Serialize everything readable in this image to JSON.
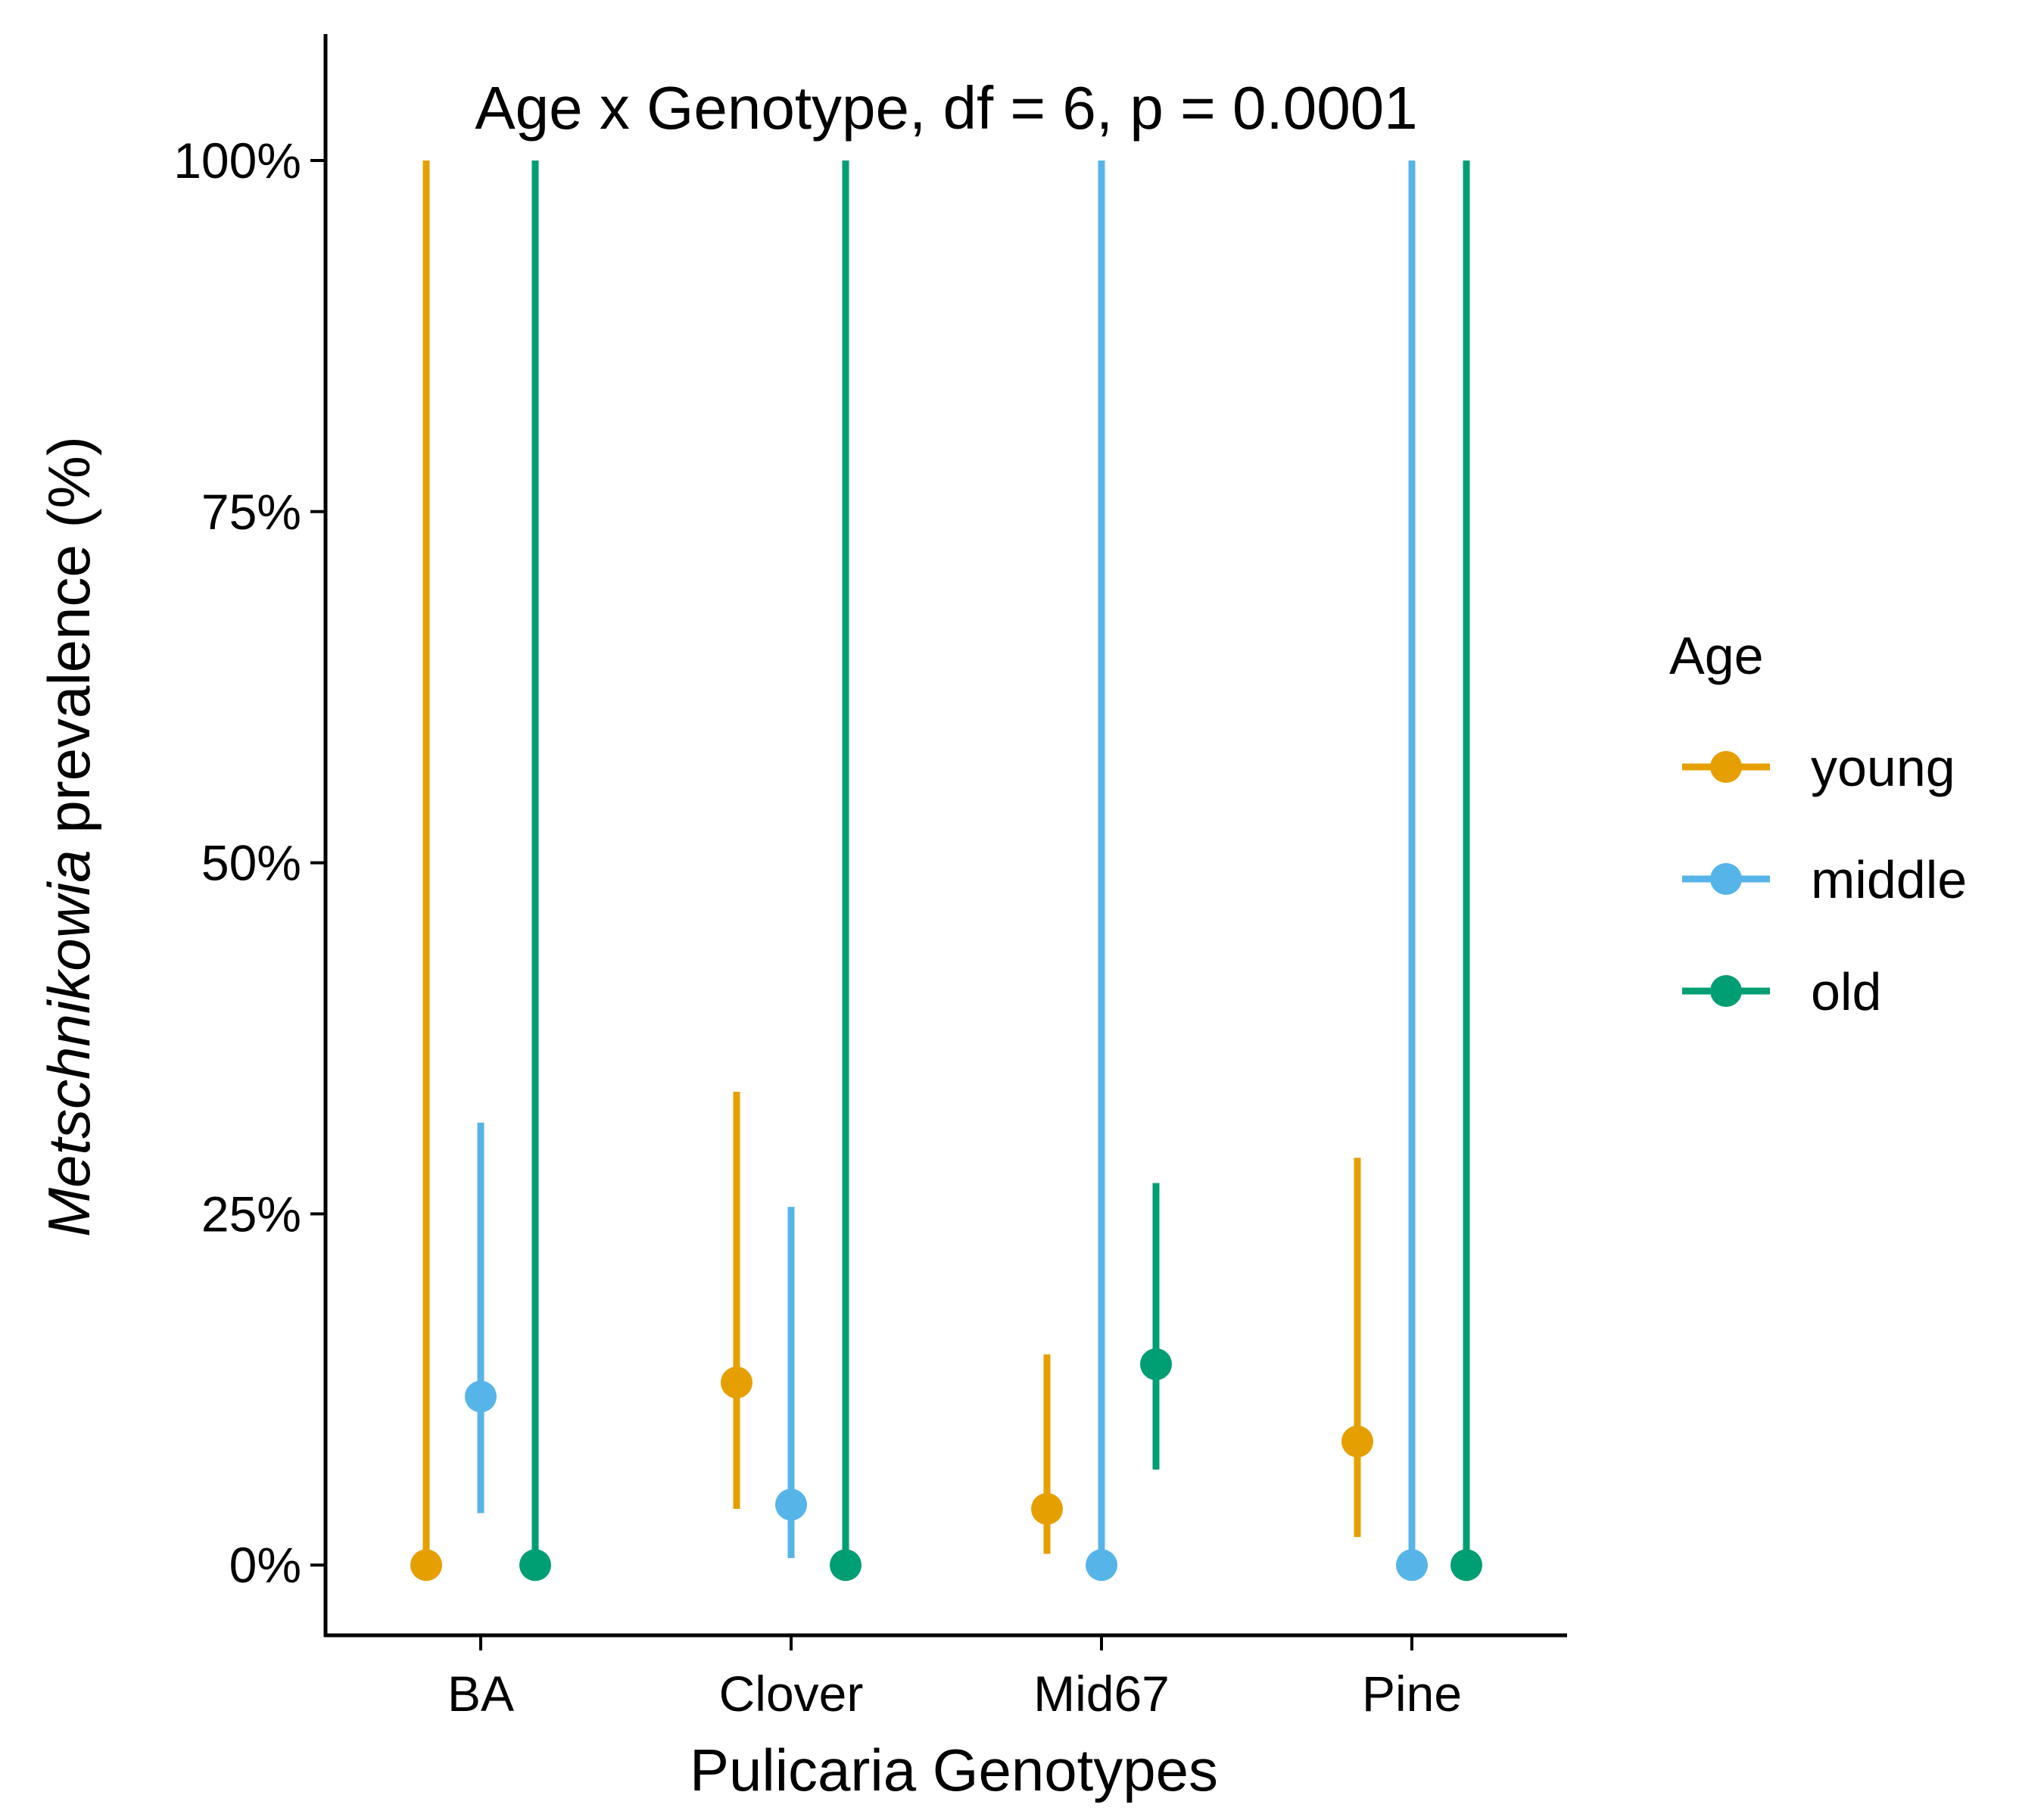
{
  "chart_data": {
    "type": "scatter",
    "categories": [
      "BA",
      "Clover",
      "Mid67",
      "Pine"
    ],
    "xlabel": "Pulicaria Genotypes",
    "ylabel_italic": "Metschnikowia",
    "ylabel_rest": " prevalence (%)",
    "annotation": "Age x Genotype, df = 6, p = 0.0001",
    "ylim": [
      -0.05,
      1.09
    ],
    "y_ticks": [
      0,
      0.25,
      0.5,
      0.75,
      1.0
    ],
    "y_tick_labels": [
      "0%",
      "25%",
      "50%",
      "75%",
      "100%"
    ],
    "grid": false,
    "legend": {
      "title": "Age",
      "position": "right",
      "entries": [
        "young",
        "middle",
        "old"
      ]
    },
    "series": [
      {
        "name": "young",
        "color": "#E69F00",
        "values": [
          0.0,
          0.13,
          0.04,
          0.088
        ],
        "lower": [
          0.0,
          0.04,
          0.008,
          0.02
        ],
        "upper": [
          1.0,
          0.337,
          0.15,
          0.29
        ]
      },
      {
        "name": "middle",
        "color": "#56B4E9",
        "values": [
          0.12,
          0.043,
          0.0,
          0.0
        ],
        "lower": [
          0.037,
          0.005,
          0.0,
          0.0
        ],
        "upper": [
          0.315,
          0.255,
          1.0,
          1.0
        ]
      },
      {
        "name": "old",
        "color": "#009E73",
        "values": [
          0.0,
          0.0,
          0.143,
          0.0
        ],
        "lower": [
          0.0,
          0.0,
          0.068,
          0.0
        ],
        "upper": [
          1.0,
          1.0,
          0.272,
          1.0
        ]
      }
    ]
  }
}
